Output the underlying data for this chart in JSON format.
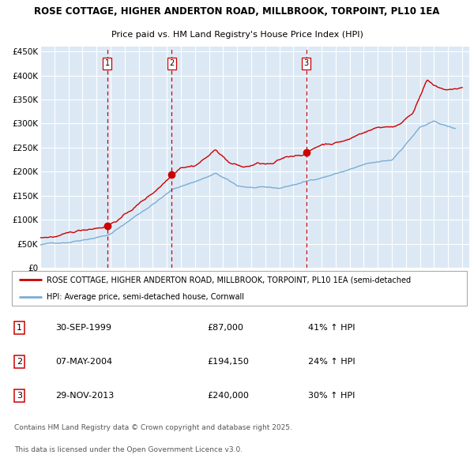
{
  "title1": "ROSE COTTAGE, HIGHER ANDERTON ROAD, MILLBROOK, TORPOINT, PL10 1EA",
  "title2": "Price paid vs. HM Land Registry's House Price Index (HPI)",
  "bg_color": "#dce9f5",
  "red_line_color": "#cc0000",
  "blue_line_color": "#7aadd4",
  "grid_color": "#ffffff",
  "sale_vline_color": "#cc0000",
  "ylim": [
    0,
    460000
  ],
  "yticks": [
    0,
    50000,
    100000,
    150000,
    200000,
    250000,
    300000,
    350000,
    400000,
    450000
  ],
  "ytick_labels": [
    "£0",
    "£50K",
    "£100K",
    "£150K",
    "£200K",
    "£250K",
    "£300K",
    "£350K",
    "£400K",
    "£450K"
  ],
  "xmin": 1995.0,
  "xmax": 2025.5,
  "sales": [
    {
      "num": 1,
      "date_x": 1999.75,
      "price": 87000,
      "label": "30-SEP-1999",
      "price_str": "£87,000",
      "pct": "41%",
      "dir": "↑"
    },
    {
      "num": 2,
      "date_x": 2004.35,
      "price": 194150,
      "label": "07-MAY-2004",
      "price_str": "£194,150",
      "pct": "24%",
      "dir": "↑"
    },
    {
      "num": 3,
      "date_x": 2013.91,
      "price": 240000,
      "label": "29-NOV-2013",
      "price_str": "£240,000",
      "pct": "30%",
      "dir": "↑"
    }
  ],
  "legend_red": "ROSE COTTAGE, HIGHER ANDERTON ROAD, MILLBROOK, TORPOINT, PL10 1EA (semi-detached",
  "legend_blue": "HPI: Average price, semi-detached house, Cornwall",
  "footer1": "Contains HM Land Registry data © Crown copyright and database right 2025.",
  "footer2": "This data is licensed under the Open Government Licence v3.0."
}
